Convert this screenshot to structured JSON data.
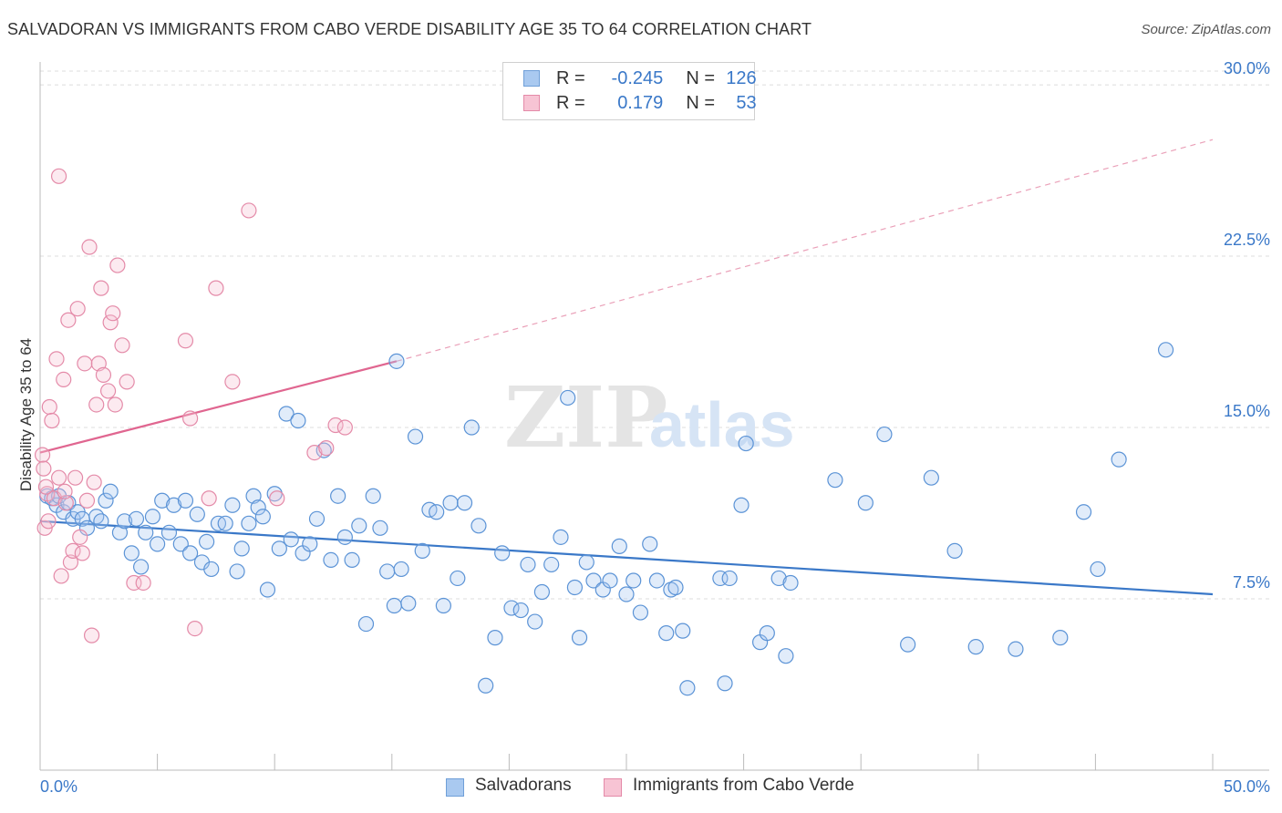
{
  "title": "SALVADORAN VS IMMIGRANTS FROM CABO VERDE DISABILITY AGE 35 TO 64 CORRELATION CHART",
  "source": "Source: ZipAtlas.com",
  "watermark": {
    "zip": "ZIP",
    "atlas": "atlas"
  },
  "legend": {
    "r_label": "R =",
    "n_label": "N =",
    "series": [
      {
        "r": "-0.245",
        "n": "126",
        "color": "#a9c9f0",
        "border": "#6f9fd8"
      },
      {
        "r": "0.179",
        "n": "53",
        "color": "#f7c4d4",
        "border": "#e48aa8"
      }
    ]
  },
  "bottom_legend": {
    "blue": "Salvadorans",
    "pink": "Immigrants from Cabo Verde"
  },
  "colors": {
    "blue": "#3a78c8",
    "blue_fill": "#a9c9f0",
    "pink": "#e06690",
    "pink_fill": "#f7c4d4",
    "grid": "#dcdcdc",
    "axis_text": "#3a78c8"
  },
  "chart_data": {
    "type": "scatter",
    "title": "SALVADORAN VS IMMIGRANTS FROM CABO VERDE DISABILITY AGE 35 TO 64 CORRELATION CHART",
    "xlabel": "",
    "ylabel": "Disability Age 35 to 64",
    "xlim": [
      0,
      50
    ],
    "ylim": [
      0,
      31
    ],
    "x_tick_labels": [
      "0.0%",
      "50.0%"
    ],
    "y_ticks": [
      7.5,
      15.0,
      22.5,
      30.0
    ],
    "y_tick_labels": [
      "7.5%",
      "15.0%",
      "22.5%",
      "30.0%"
    ],
    "grid": true,
    "legend_position": "top-center",
    "series": [
      {
        "name": "Salvadorans",
        "color": "#3a78c8",
        "trend": {
          "x": [
            0,
            50
          ],
          "y": [
            10.9,
            7.7
          ],
          "style": "solid"
        },
        "points": [
          [
            0.3,
            12.0
          ],
          [
            0.5,
            11.9
          ],
          [
            0.7,
            11.6
          ],
          [
            0.8,
            12.0
          ],
          [
            1.0,
            11.3
          ],
          [
            1.2,
            11.7
          ],
          [
            1.4,
            11.0
          ],
          [
            1.6,
            11.3
          ],
          [
            1.8,
            11.0
          ],
          [
            2.0,
            10.6
          ],
          [
            2.4,
            11.1
          ],
          [
            2.6,
            10.9
          ],
          [
            2.8,
            11.8
          ],
          [
            3.0,
            12.2
          ],
          [
            3.4,
            10.4
          ],
          [
            3.6,
            10.9
          ],
          [
            3.9,
            9.5
          ],
          [
            4.1,
            11.0
          ],
          [
            4.3,
            8.9
          ],
          [
            4.5,
            10.4
          ],
          [
            4.8,
            11.1
          ],
          [
            5.0,
            9.9
          ],
          [
            5.2,
            11.8
          ],
          [
            5.5,
            10.4
          ],
          [
            5.7,
            11.6
          ],
          [
            6.0,
            9.9
          ],
          [
            6.2,
            11.8
          ],
          [
            6.4,
            9.5
          ],
          [
            6.7,
            11.2
          ],
          [
            6.9,
            9.1
          ],
          [
            7.1,
            10.0
          ],
          [
            7.3,
            8.8
          ],
          [
            7.6,
            10.8
          ],
          [
            7.9,
            10.8
          ],
          [
            8.2,
            11.6
          ],
          [
            8.4,
            8.7
          ],
          [
            8.6,
            9.7
          ],
          [
            8.9,
            10.8
          ],
          [
            9.1,
            12.0
          ],
          [
            9.3,
            11.5
          ],
          [
            9.5,
            11.1
          ],
          [
            9.7,
            7.9
          ],
          [
            10.0,
            12.1
          ],
          [
            10.2,
            9.7
          ],
          [
            10.5,
            15.6
          ],
          [
            10.7,
            10.1
          ],
          [
            11.0,
            15.3
          ],
          [
            11.2,
            9.5
          ],
          [
            11.5,
            9.9
          ],
          [
            11.8,
            11.0
          ],
          [
            12.1,
            14.0
          ],
          [
            12.4,
            9.2
          ],
          [
            12.7,
            12.0
          ],
          [
            13.0,
            10.2
          ],
          [
            13.3,
            9.2
          ],
          [
            13.6,
            10.7
          ],
          [
            13.9,
            6.4
          ],
          [
            14.2,
            12.0
          ],
          [
            14.5,
            10.6
          ],
          [
            14.8,
            8.7
          ],
          [
            15.1,
            7.2
          ],
          [
            15.4,
            8.8
          ],
          [
            15.7,
            7.3
          ],
          [
            16.0,
            14.6
          ],
          [
            16.3,
            9.6
          ],
          [
            16.6,
            11.4
          ],
          [
            16.9,
            11.3
          ],
          [
            17.2,
            7.2
          ],
          [
            17.5,
            11.7
          ],
          [
            17.8,
            8.4
          ],
          [
            18.1,
            11.7
          ],
          [
            18.4,
            15.0
          ],
          [
            18.7,
            10.7
          ],
          [
            19.0,
            3.7
          ],
          [
            19.4,
            5.8
          ],
          [
            19.7,
            9.5
          ],
          [
            20.1,
            7.1
          ],
          [
            20.5,
            7.0
          ],
          [
            20.8,
            9.0
          ],
          [
            21.1,
            6.5
          ],
          [
            21.4,
            7.8
          ],
          [
            21.8,
            9.0
          ],
          [
            22.2,
            10.2
          ],
          [
            22.5,
            16.3
          ],
          [
            22.8,
            8.0
          ],
          [
            23.0,
            5.8
          ],
          [
            23.3,
            9.1
          ],
          [
            23.6,
            8.3
          ],
          [
            24.0,
            7.9
          ],
          [
            24.3,
            8.3
          ],
          [
            24.7,
            9.8
          ],
          [
            25.0,
            7.7
          ],
          [
            25.3,
            8.3
          ],
          [
            25.6,
            6.9
          ],
          [
            26.0,
            9.9
          ],
          [
            26.3,
            8.3
          ],
          [
            26.7,
            6.0
          ],
          [
            26.9,
            7.9
          ],
          [
            27.1,
            8.0
          ],
          [
            27.4,
            6.1
          ],
          [
            27.6,
            3.6
          ],
          [
            29.0,
            8.4
          ],
          [
            29.2,
            3.8
          ],
          [
            29.4,
            8.4
          ],
          [
            29.9,
            11.6
          ],
          [
            30.1,
            14.3
          ],
          [
            30.7,
            5.6
          ],
          [
            31.0,
            6.0
          ],
          [
            31.5,
            8.4
          ],
          [
            31.8,
            5.0
          ],
          [
            32.0,
            8.2
          ],
          [
            33.9,
            12.7
          ],
          [
            35.2,
            11.7
          ],
          [
            36.0,
            14.7
          ],
          [
            37.0,
            5.5
          ],
          [
            38.0,
            12.8
          ],
          [
            39.0,
            9.6
          ],
          [
            39.9,
            5.4
          ],
          [
            41.6,
            5.3
          ],
          [
            43.5,
            5.8
          ],
          [
            44.5,
            11.3
          ],
          [
            45.1,
            8.8
          ],
          [
            46.0,
            13.6
          ],
          [
            48.0,
            18.4
          ],
          [
            15.2,
            17.9
          ]
        ]
      },
      {
        "name": "Immigrants from Cabo Verde",
        "color": "#e06690",
        "trend": {
          "x": [
            0,
            15.2
          ],
          "y": [
            13.9,
            17.9
          ],
          "style": "solid"
        },
        "trend_extension": {
          "x": [
            15.2,
            50
          ],
          "y": [
            17.9,
            27.6
          ],
          "style": "dashed"
        },
        "points": [
          [
            0.1,
            13.8
          ],
          [
            0.2,
            10.6
          ],
          [
            0.3,
            12.1
          ],
          [
            0.4,
            15.9
          ],
          [
            0.5,
            15.3
          ],
          [
            0.6,
            11.9
          ],
          [
            0.7,
            18.0
          ],
          [
            0.8,
            12.8
          ],
          [
            0.9,
            8.5
          ],
          [
            1.0,
            17.1
          ],
          [
            1.1,
            11.7
          ],
          [
            1.2,
            19.7
          ],
          [
            1.3,
            9.1
          ],
          [
            1.4,
            9.6
          ],
          [
            1.5,
            12.8
          ],
          [
            1.6,
            20.2
          ],
          [
            1.7,
            10.2
          ],
          [
            1.8,
            9.5
          ],
          [
            1.9,
            17.8
          ],
          [
            2.0,
            11.8
          ],
          [
            2.1,
            22.9
          ],
          [
            2.2,
            5.9
          ],
          [
            2.3,
            12.6
          ],
          [
            2.4,
            16.0
          ],
          [
            2.5,
            17.8
          ],
          [
            2.6,
            21.1
          ],
          [
            2.7,
            17.3
          ],
          [
            2.9,
            16.6
          ],
          [
            3.0,
            19.6
          ],
          [
            3.1,
            20.0
          ],
          [
            3.2,
            16.0
          ],
          [
            3.3,
            22.1
          ],
          [
            3.5,
            18.6
          ],
          [
            3.7,
            17.0
          ],
          [
            4.0,
            8.2
          ],
          [
            4.4,
            8.2
          ],
          [
            6.2,
            18.8
          ],
          [
            6.4,
            15.4
          ],
          [
            6.6,
            6.2
          ],
          [
            7.2,
            11.9
          ],
          [
            7.5,
            21.1
          ],
          [
            8.2,
            17.0
          ],
          [
            8.9,
            24.5
          ],
          [
            10.1,
            11.9
          ],
          [
            11.7,
            13.9
          ],
          [
            12.2,
            14.1
          ],
          [
            12.6,
            15.1
          ],
          [
            13.0,
            15.0
          ],
          [
            0.8,
            26.0
          ],
          [
            0.15,
            13.2
          ],
          [
            0.25,
            12.4
          ],
          [
            0.35,
            10.9
          ],
          [
            1.05,
            12.2
          ]
        ]
      }
    ]
  }
}
